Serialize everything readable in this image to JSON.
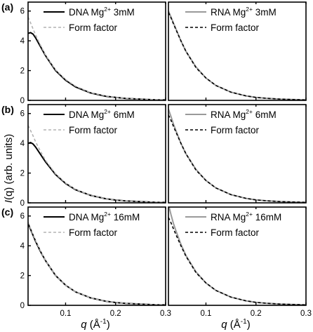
{
  "figure": {
    "ylabel_symbol": "I",
    "ylabel_arg": "(q)",
    "ylabel_units": " (arb. units)",
    "xlabel_symbol": "q",
    "xlabel_units": " (Å",
    "xlabel_exp": "-1",
    "xlabel_close": ")"
  },
  "colors": {
    "dna_measured": "#000000",
    "rna_measured": "#9a9a9a",
    "dna_form_factor": "#b3b3b3",
    "rna_form_factor": "#000000"
  },
  "chart_data": [
    {
      "type": "line",
      "row_label": "(a)",
      "molecule": "DNA",
      "mg_mM": "3mM",
      "xlim": [
        0.025,
        0.3
      ],
      "ylim": [
        0,
        6.6
      ],
      "xticks": [
        "0.1",
        "0.2",
        "0.3"
      ],
      "yticks": [
        "0",
        "2",
        "4",
        "6"
      ],
      "legend_placement": "top-right",
      "series": [
        {
          "name": "DNA Mg2+ 3mM",
          "style": "solid",
          "x": [
            0.025,
            0.03,
            0.035,
            0.04,
            0.05,
            0.06,
            0.08,
            0.1,
            0.12,
            0.15,
            0.18,
            0.2,
            0.22,
            0.25,
            0.28,
            0.3
          ],
          "y": [
            4.5,
            4.55,
            4.45,
            4.2,
            3.6,
            3.0,
            2.0,
            1.35,
            0.9,
            0.5,
            0.28,
            0.2,
            0.13,
            0.08,
            0.04,
            0.03
          ]
        },
        {
          "name": "Form factor",
          "style": "dashed",
          "x": [
            0.025,
            0.03,
            0.035,
            0.04,
            0.05,
            0.06,
            0.08,
            0.1,
            0.12,
            0.15,
            0.18,
            0.2,
            0.22,
            0.25,
            0.28,
            0.3
          ],
          "y": [
            5.6,
            5.2,
            4.8,
            4.4,
            3.7,
            3.05,
            2.05,
            1.4,
            0.95,
            0.52,
            0.3,
            0.2,
            0.14,
            0.08,
            0.05,
            0.03
          ]
        }
      ]
    },
    {
      "type": "line",
      "row_label": "",
      "molecule": "RNA",
      "mg_mM": "3mM",
      "xlim": [
        0.025,
        0.3
      ],
      "ylim": [
        0,
        6.6
      ],
      "xticks": [
        "0.1",
        "0.2",
        "0.3"
      ],
      "yticks": [],
      "legend_placement": "top-right",
      "series": [
        {
          "name": "RNA Mg2+ 3mM",
          "style": "solid",
          "x": [
            0.025,
            0.03,
            0.035,
            0.04,
            0.05,
            0.06,
            0.08,
            0.1,
            0.12,
            0.15,
            0.18,
            0.2,
            0.22,
            0.25,
            0.28,
            0.3
          ],
          "y": [
            6.0,
            5.6,
            5.2,
            4.8,
            4.0,
            3.3,
            2.25,
            1.5,
            1.0,
            0.55,
            0.3,
            0.2,
            0.14,
            0.08,
            0.05,
            0.03
          ]
        },
        {
          "name": "Form factor",
          "style": "dashed",
          "x": [
            0.025,
            0.03,
            0.035,
            0.04,
            0.05,
            0.06,
            0.08,
            0.1,
            0.12,
            0.15,
            0.18,
            0.2,
            0.22,
            0.25,
            0.28,
            0.3
          ],
          "y": [
            5.9,
            5.55,
            5.15,
            4.75,
            4.0,
            3.3,
            2.2,
            1.5,
            1.0,
            0.55,
            0.3,
            0.2,
            0.14,
            0.08,
            0.05,
            0.03
          ]
        }
      ]
    },
    {
      "type": "line",
      "row_label": "(b)",
      "molecule": "DNA",
      "mg_mM": "6mM",
      "xlim": [
        0.025,
        0.3
      ],
      "ylim": [
        0,
        6.6
      ],
      "xticks": [
        "0.1",
        "0.2",
        "0.3"
      ],
      "yticks": [
        "0",
        "2",
        "4",
        "6"
      ],
      "legend_placement": "top-right",
      "series": [
        {
          "name": "DNA Mg2+ 6mM",
          "style": "solid",
          "x": [
            0.025,
            0.03,
            0.035,
            0.04,
            0.05,
            0.06,
            0.08,
            0.1,
            0.12,
            0.15,
            0.18,
            0.2,
            0.22,
            0.25,
            0.28,
            0.3
          ],
          "y": [
            4.0,
            4.05,
            3.95,
            3.75,
            3.25,
            2.75,
            1.9,
            1.3,
            0.88,
            0.5,
            0.28,
            0.19,
            0.13,
            0.08,
            0.04,
            0.03
          ]
        },
        {
          "name": "Form factor",
          "style": "dashed",
          "x": [
            0.025,
            0.03,
            0.035,
            0.04,
            0.05,
            0.06,
            0.08,
            0.1,
            0.12,
            0.15,
            0.18,
            0.2,
            0.22,
            0.25,
            0.28,
            0.3
          ],
          "y": [
            5.2,
            4.85,
            4.5,
            4.1,
            3.45,
            2.85,
            1.95,
            1.33,
            0.9,
            0.5,
            0.28,
            0.19,
            0.13,
            0.08,
            0.04,
            0.03
          ]
        }
      ]
    },
    {
      "type": "line",
      "row_label": "",
      "molecule": "RNA",
      "mg_mM": "6mM",
      "xlim": [
        0.025,
        0.3
      ],
      "ylim": [
        0,
        6.6
      ],
      "xticks": [
        "0.1",
        "0.2",
        "0.3"
      ],
      "yticks": [],
      "legend_placement": "top-right",
      "series": [
        {
          "name": "RNA Mg2+ 6mM",
          "style": "solid",
          "x": [
            0.025,
            0.03,
            0.035,
            0.04,
            0.05,
            0.06,
            0.08,
            0.1,
            0.12,
            0.15,
            0.18,
            0.2,
            0.22,
            0.25,
            0.28,
            0.3
          ],
          "y": [
            6.3,
            5.8,
            5.3,
            4.85,
            4.0,
            3.3,
            2.25,
            1.5,
            1.0,
            0.55,
            0.3,
            0.2,
            0.14,
            0.08,
            0.05,
            0.03
          ]
        },
        {
          "name": "Form factor",
          "style": "dashed",
          "x": [
            0.025,
            0.03,
            0.035,
            0.04,
            0.05,
            0.06,
            0.08,
            0.1,
            0.12,
            0.15,
            0.18,
            0.2,
            0.22,
            0.25,
            0.28,
            0.3
          ],
          "y": [
            5.9,
            5.55,
            5.15,
            4.75,
            4.0,
            3.3,
            2.2,
            1.5,
            1.0,
            0.55,
            0.3,
            0.2,
            0.14,
            0.08,
            0.05,
            0.03
          ]
        }
      ]
    },
    {
      "type": "line",
      "row_label": "(c)",
      "molecule": "DNA",
      "mg_mM": "16mM",
      "xlim": [
        0.025,
        0.3
      ],
      "ylim": [
        0,
        6.6
      ],
      "xticks": [
        "0.1",
        "0.2",
        "0.3"
      ],
      "yticks": [
        "0",
        "2",
        "4",
        "6"
      ],
      "legend_placement": "top-right",
      "series": [
        {
          "name": "DNA Mg2+ 16mM",
          "style": "solid",
          "x": [
            0.025,
            0.03,
            0.035,
            0.04,
            0.05,
            0.06,
            0.08,
            0.1,
            0.12,
            0.15,
            0.18,
            0.2,
            0.22,
            0.25,
            0.28,
            0.3
          ],
          "y": [
            5.5,
            5.1,
            4.7,
            4.3,
            3.6,
            3.0,
            2.0,
            1.35,
            0.9,
            0.5,
            0.28,
            0.19,
            0.13,
            0.08,
            0.04,
            0.03
          ]
        },
        {
          "name": "Form factor",
          "style": "dashed",
          "x": [
            0.025,
            0.03,
            0.035,
            0.04,
            0.05,
            0.06,
            0.08,
            0.1,
            0.12,
            0.15,
            0.18,
            0.2,
            0.22,
            0.25,
            0.28,
            0.3
          ],
          "y": [
            5.6,
            5.15,
            4.75,
            4.35,
            3.65,
            3.0,
            2.0,
            1.35,
            0.9,
            0.5,
            0.28,
            0.19,
            0.13,
            0.08,
            0.04,
            0.03
          ]
        }
      ]
    },
    {
      "type": "line",
      "row_label": "",
      "molecule": "RNA",
      "mg_mM": "16mM",
      "xlim": [
        0.025,
        0.3
      ],
      "ylim": [
        0,
        6.6
      ],
      "xticks": [
        "0.1",
        "0.2",
        "0.3"
      ],
      "yticks": [],
      "legend_placement": "top-right",
      "series": [
        {
          "name": "RNA Mg2+ 16mM",
          "style": "solid",
          "x": [
            0.025,
            0.03,
            0.035,
            0.04,
            0.05,
            0.06,
            0.08,
            0.1,
            0.12,
            0.15,
            0.18,
            0.2,
            0.22,
            0.25,
            0.28,
            0.3
          ],
          "y": [
            6.8,
            6.1,
            5.5,
            5.0,
            4.1,
            3.35,
            2.25,
            1.5,
            1.0,
            0.55,
            0.3,
            0.2,
            0.14,
            0.08,
            0.05,
            0.03
          ]
        },
        {
          "name": "Form factor",
          "style": "dashed",
          "x": [
            0.025,
            0.03,
            0.035,
            0.04,
            0.05,
            0.06,
            0.08,
            0.1,
            0.12,
            0.15,
            0.18,
            0.2,
            0.22,
            0.25,
            0.28,
            0.3
          ],
          "y": [
            5.9,
            5.55,
            5.15,
            4.75,
            4.0,
            3.3,
            2.2,
            1.5,
            1.0,
            0.55,
            0.3,
            0.2,
            0.14,
            0.08,
            0.05,
            0.03
          ]
        }
      ]
    }
  ]
}
